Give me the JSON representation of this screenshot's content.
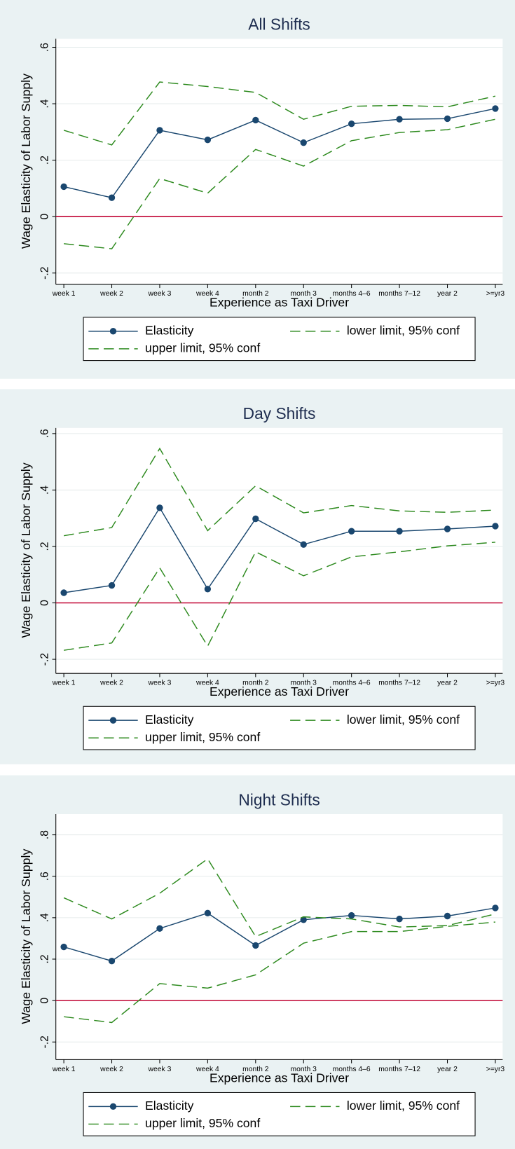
{
  "chart_data": [
    {
      "type": "line",
      "title": "All Shifts",
      "x_label": "Experience as Taxi Driver",
      "y_label": "Wage Elasticity of Labor Supply",
      "categories": [
        "week 1",
        "week 2",
        "week 3",
        "week 4",
        "month 2",
        "month 3",
        "months 4–6",
        "months 7–12",
        "year 2",
        ">=yr3"
      ],
      "series": [
        {
          "name": "Elasticity",
          "color": "#1a476f",
          "style": "solid-marker",
          "values": [
            0.106,
            0.067,
            0.306,
            0.272,
            0.342,
            0.262,
            0.329,
            0.345,
            0.347,
            0.383
          ]
        },
        {
          "name": "lower limit, 95% conf",
          "color": "#2d8a1e",
          "style": "dashed",
          "values": [
            -0.096,
            -0.114,
            0.135,
            0.083,
            0.238,
            0.179,
            0.269,
            0.298,
            0.308,
            0.345
          ]
        },
        {
          "name": "upper limit, 95% conf",
          "color": "#2d8a1e",
          "style": "dashed",
          "values": [
            0.306,
            0.254,
            0.477,
            0.461,
            0.44,
            0.345,
            0.391,
            0.394,
            0.389,
            0.427
          ]
        }
      ],
      "ylim": [
        -0.24,
        0.63
      ],
      "yticks": [
        {
          "value": -0.2,
          "label": "-.2"
        },
        0,
        {
          "value": 0.2,
          "label": ".2"
        },
        {
          "value": 0.4,
          "label": ".4"
        },
        {
          "value": 0.6,
          "label": ".6"
        }
      ],
      "yline": 0,
      "yline_color": "#c10534",
      "grid": true
    },
    {
      "type": "line",
      "title": "Day Shifts",
      "x_label": "Experience as Taxi Driver",
      "y_label": "Wage Elasticity of Labor Supply",
      "categories": [
        "week 1",
        "week 2",
        "week 3",
        "week 4",
        "month 2",
        "month 3",
        "months 4–6",
        "months 7–12",
        "year 2",
        ">=yr3"
      ],
      "series": [
        {
          "name": "Elasticity",
          "color": "#1a476f",
          "style": "solid-marker",
          "values": [
            0.036,
            0.062,
            0.337,
            0.049,
            0.298,
            0.207,
            0.254,
            0.254,
            0.262,
            0.272
          ]
        },
        {
          "name": "lower limit, 95% conf",
          "color": "#2d8a1e",
          "style": "dashed",
          "values": [
            -0.168,
            -0.142,
            0.124,
            -0.153,
            0.181,
            0.096,
            0.163,
            0.181,
            0.202,
            0.215
          ]
        },
        {
          "name": "upper limit, 95% conf",
          "color": "#2d8a1e",
          "style": "dashed",
          "values": [
            0.238,
            0.267,
            0.547,
            0.256,
            0.415,
            0.319,
            0.345,
            0.326,
            0.321,
            0.329
          ]
        }
      ],
      "ylim": [
        -0.25,
        0.62
      ],
      "yticks": [
        {
          "value": -0.2,
          "label": "-.2"
        },
        0,
        {
          "value": 0.2,
          "label": ".2"
        },
        {
          "value": 0.4,
          "label": ".4"
        },
        {
          "value": 0.6,
          "label": ".6"
        }
      ],
      "yline": 0,
      "yline_color": "#c10534",
      "grid": true
    },
    {
      "type": "line",
      "title": "Night Shifts",
      "x_label": "Experience as Taxi Driver",
      "y_label": "Wage Elasticity of Labor Supply",
      "categories": [
        "week 1",
        "week 2",
        "week 3",
        "week 4",
        "month 2",
        "month 3",
        "months 4–6",
        "months 7–12",
        "year 2",
        ">=yr3"
      ],
      "series": [
        {
          "name": "Elasticity",
          "color": "#1a476f",
          "style": "solid-marker",
          "values": [
            0.259,
            0.191,
            0.348,
            0.422,
            0.266,
            0.39,
            0.411,
            0.394,
            0.408,
            0.447
          ]
        },
        {
          "name": "lower limit, 95% conf",
          "color": "#2d8a1e",
          "style": "dashed",
          "values": [
            -0.078,
            -0.106,
            0.082,
            0.06,
            0.124,
            0.277,
            0.333,
            0.333,
            0.358,
            0.379
          ]
        },
        {
          "name": "upper limit, 95% conf",
          "color": "#2d8a1e",
          "style": "dashed",
          "values": [
            0.496,
            0.394,
            0.518,
            0.684,
            0.309,
            0.404,
            0.394,
            0.355,
            0.362,
            0.418
          ]
        }
      ],
      "ylim": [
        -0.285,
        0.9
      ],
      "yticks": [
        {
          "value": -0.2,
          "label": "-.2"
        },
        0,
        {
          "value": 0.2,
          "label": ".2"
        },
        {
          "value": 0.4,
          "label": ".4"
        },
        {
          "value": 0.6,
          "label": ".6"
        },
        {
          "value": 0.8,
          "label": ".8"
        }
      ],
      "yline": 0,
      "yline_color": "#c10534",
      "grid": true
    }
  ]
}
